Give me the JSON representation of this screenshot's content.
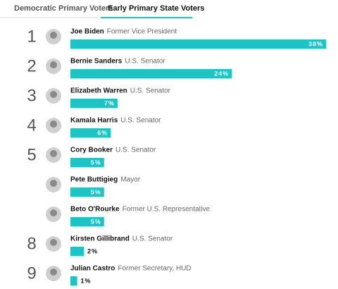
{
  "tabs": [
    "Democratic Primary Voters",
    "Early Primary State Voters"
  ],
  "active_tab": 1,
  "chart_data": {
    "type": "bar",
    "orientation": "horizontal",
    "color": "#1ec3c3",
    "ranks": [
      "1",
      "2",
      "3",
      "4",
      "5",
      null,
      null,
      "8",
      "9"
    ],
    "categories": [
      "Joe Biden",
      "Bernie Sanders",
      "Elizabeth Warren",
      "Kamala Harris",
      "Cory Booker",
      "Pete Buttigieg",
      "Beto O'Rourke",
      "Kirsten Gillibrand",
      "Julian Castro"
    ],
    "descriptions": [
      "Former Vice President",
      "U.S. Senator",
      "U.S. Senator",
      "U.S. Senator",
      "U.S. Senator",
      "Mayor",
      "Former U.S. Representative",
      "U.S. Senator",
      "Former Secretary, HUD"
    ],
    "values": [
      38,
      24,
      7,
      6,
      5,
      5,
      5,
      2,
      1
    ],
    "value_labels": [
      "38%",
      "24%",
      "7%",
      "6%",
      "5%",
      "5%",
      "5%",
      "2%",
      "1%"
    ],
    "xlim": [
      0,
      38
    ]
  }
}
